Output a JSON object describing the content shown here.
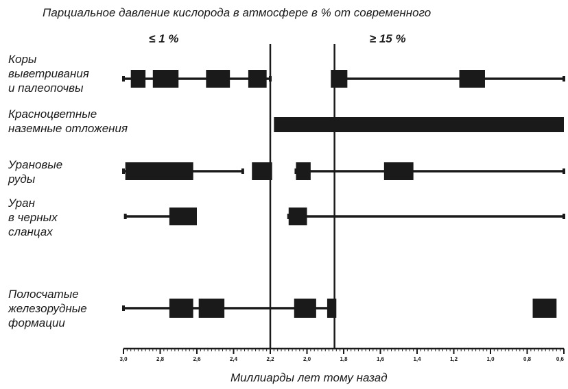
{
  "chart_data": {
    "type": "timeline",
    "title": "Парциальное давление кислорода в атмосфере в % от современного",
    "xlabel": "Миллиарды лет тому назад",
    "xlim": [
      3.0,
      0.6
    ],
    "x_reversed": true,
    "ticks": [
      {
        "value": 3.0,
        "label": "3,0"
      },
      {
        "value": 2.8,
        "label": "2,8"
      },
      {
        "value": 2.6,
        "label": "2,6"
      },
      {
        "value": 2.4,
        "label": "2,4"
      },
      {
        "value": 2.2,
        "label": "2,2"
      },
      {
        "value": 2.0,
        "label": "2,0"
      },
      {
        "value": 1.8,
        "label": "1,8"
      },
      {
        "value": 1.6,
        "label": "1,6"
      },
      {
        "value": 1.4,
        "label": "1,4"
      },
      {
        "value": 1.2,
        "label": "1,2"
      },
      {
        "value": 1.0,
        "label": "1,0"
      },
      {
        "value": 0.8,
        "label": "0,8"
      },
      {
        "value": 0.6,
        "label": "0,6"
      }
    ],
    "boundaries": [
      2.2,
      1.85
    ],
    "regimes": [
      {
        "label": "≤ 1 %",
        "at": 2.78
      },
      {
        "label": "≥ 15 %",
        "at": 1.56
      }
    ],
    "rows": [
      {
        "label_lines": [
          "Коры",
          "выветривания",
          "и палеопочвы"
        ],
        "lines": [
          [
            3.0,
            2.2
          ],
          [
            1.86,
            0.6
          ]
        ],
        "blocks": [
          [
            2.96,
            2.88
          ],
          [
            2.84,
            2.7
          ],
          [
            2.55,
            2.42
          ],
          [
            2.32,
            2.22
          ],
          [
            1.87,
            1.78
          ],
          [
            1.17,
            1.03
          ]
        ]
      },
      {
        "label_lines": [
          "Красноцветные",
          "наземные отложения"
        ],
        "lines": [],
        "blocks": [
          [
            2.18,
            0.6
          ]
        ]
      },
      {
        "label_lines": [
          "Урановые",
          "руды"
        ],
        "lines": [
          [
            3.0,
            2.35
          ],
          [
            2.06,
            0.6
          ]
        ],
        "blocks": [
          [
            2.99,
            2.62
          ],
          [
            2.3,
            2.19
          ],
          [
            2.06,
            1.98
          ],
          [
            1.58,
            1.42
          ]
        ]
      },
      {
        "label_lines": [
          "Уран",
          "в черных",
          "сланцах"
        ],
        "lines": [
          [
            2.99,
            2.72
          ],
          [
            2.1,
            0.6
          ]
        ],
        "blocks": [
          [
            2.75,
            2.6
          ],
          [
            2.1,
            2.0
          ]
        ]
      },
      {
        "label_lines": [
          "Полосчатые",
          "железорудные",
          "формации"
        ],
        "lines": [
          [
            3.0,
            1.85
          ]
        ],
        "blocks": [
          [
            2.75,
            2.62
          ],
          [
            2.59,
            2.45
          ],
          [
            2.07,
            1.95
          ],
          [
            1.89,
            1.84
          ],
          [
            0.77,
            0.64
          ]
        ]
      }
    ]
  }
}
